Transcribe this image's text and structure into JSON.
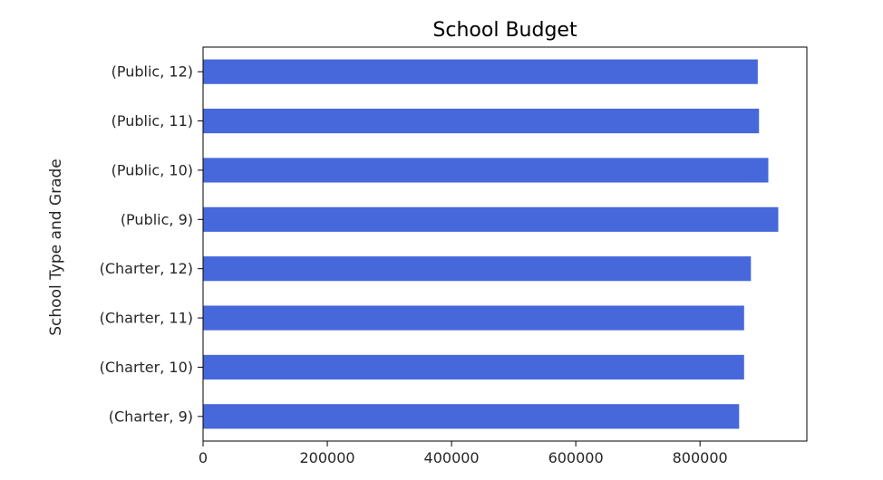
{
  "chart_data": {
    "type": "bar",
    "orientation": "horizontal",
    "title": "School Budget",
    "xlabel": "",
    "ylabel": "School Type and Grade",
    "categories": [
      "(Public, 12)",
      "(Public, 11)",
      "(Public, 10)",
      "(Public, 9)",
      "(Charter, 12)",
      "(Charter, 11)",
      "(Charter, 10)",
      "(Charter, 9)"
    ],
    "values": [
      893000,
      895000,
      910000,
      926000,
      882000,
      871000,
      871000,
      863000
    ],
    "xlim": [
      0,
      972000
    ],
    "xticks": [
      0,
      200000,
      400000,
      600000,
      800000
    ],
    "xtick_labels": [
      "0",
      "200000",
      "400000",
      "600000",
      "800000"
    ],
    "grid": false,
    "legend": "none",
    "bar_color": "#4668db"
  }
}
